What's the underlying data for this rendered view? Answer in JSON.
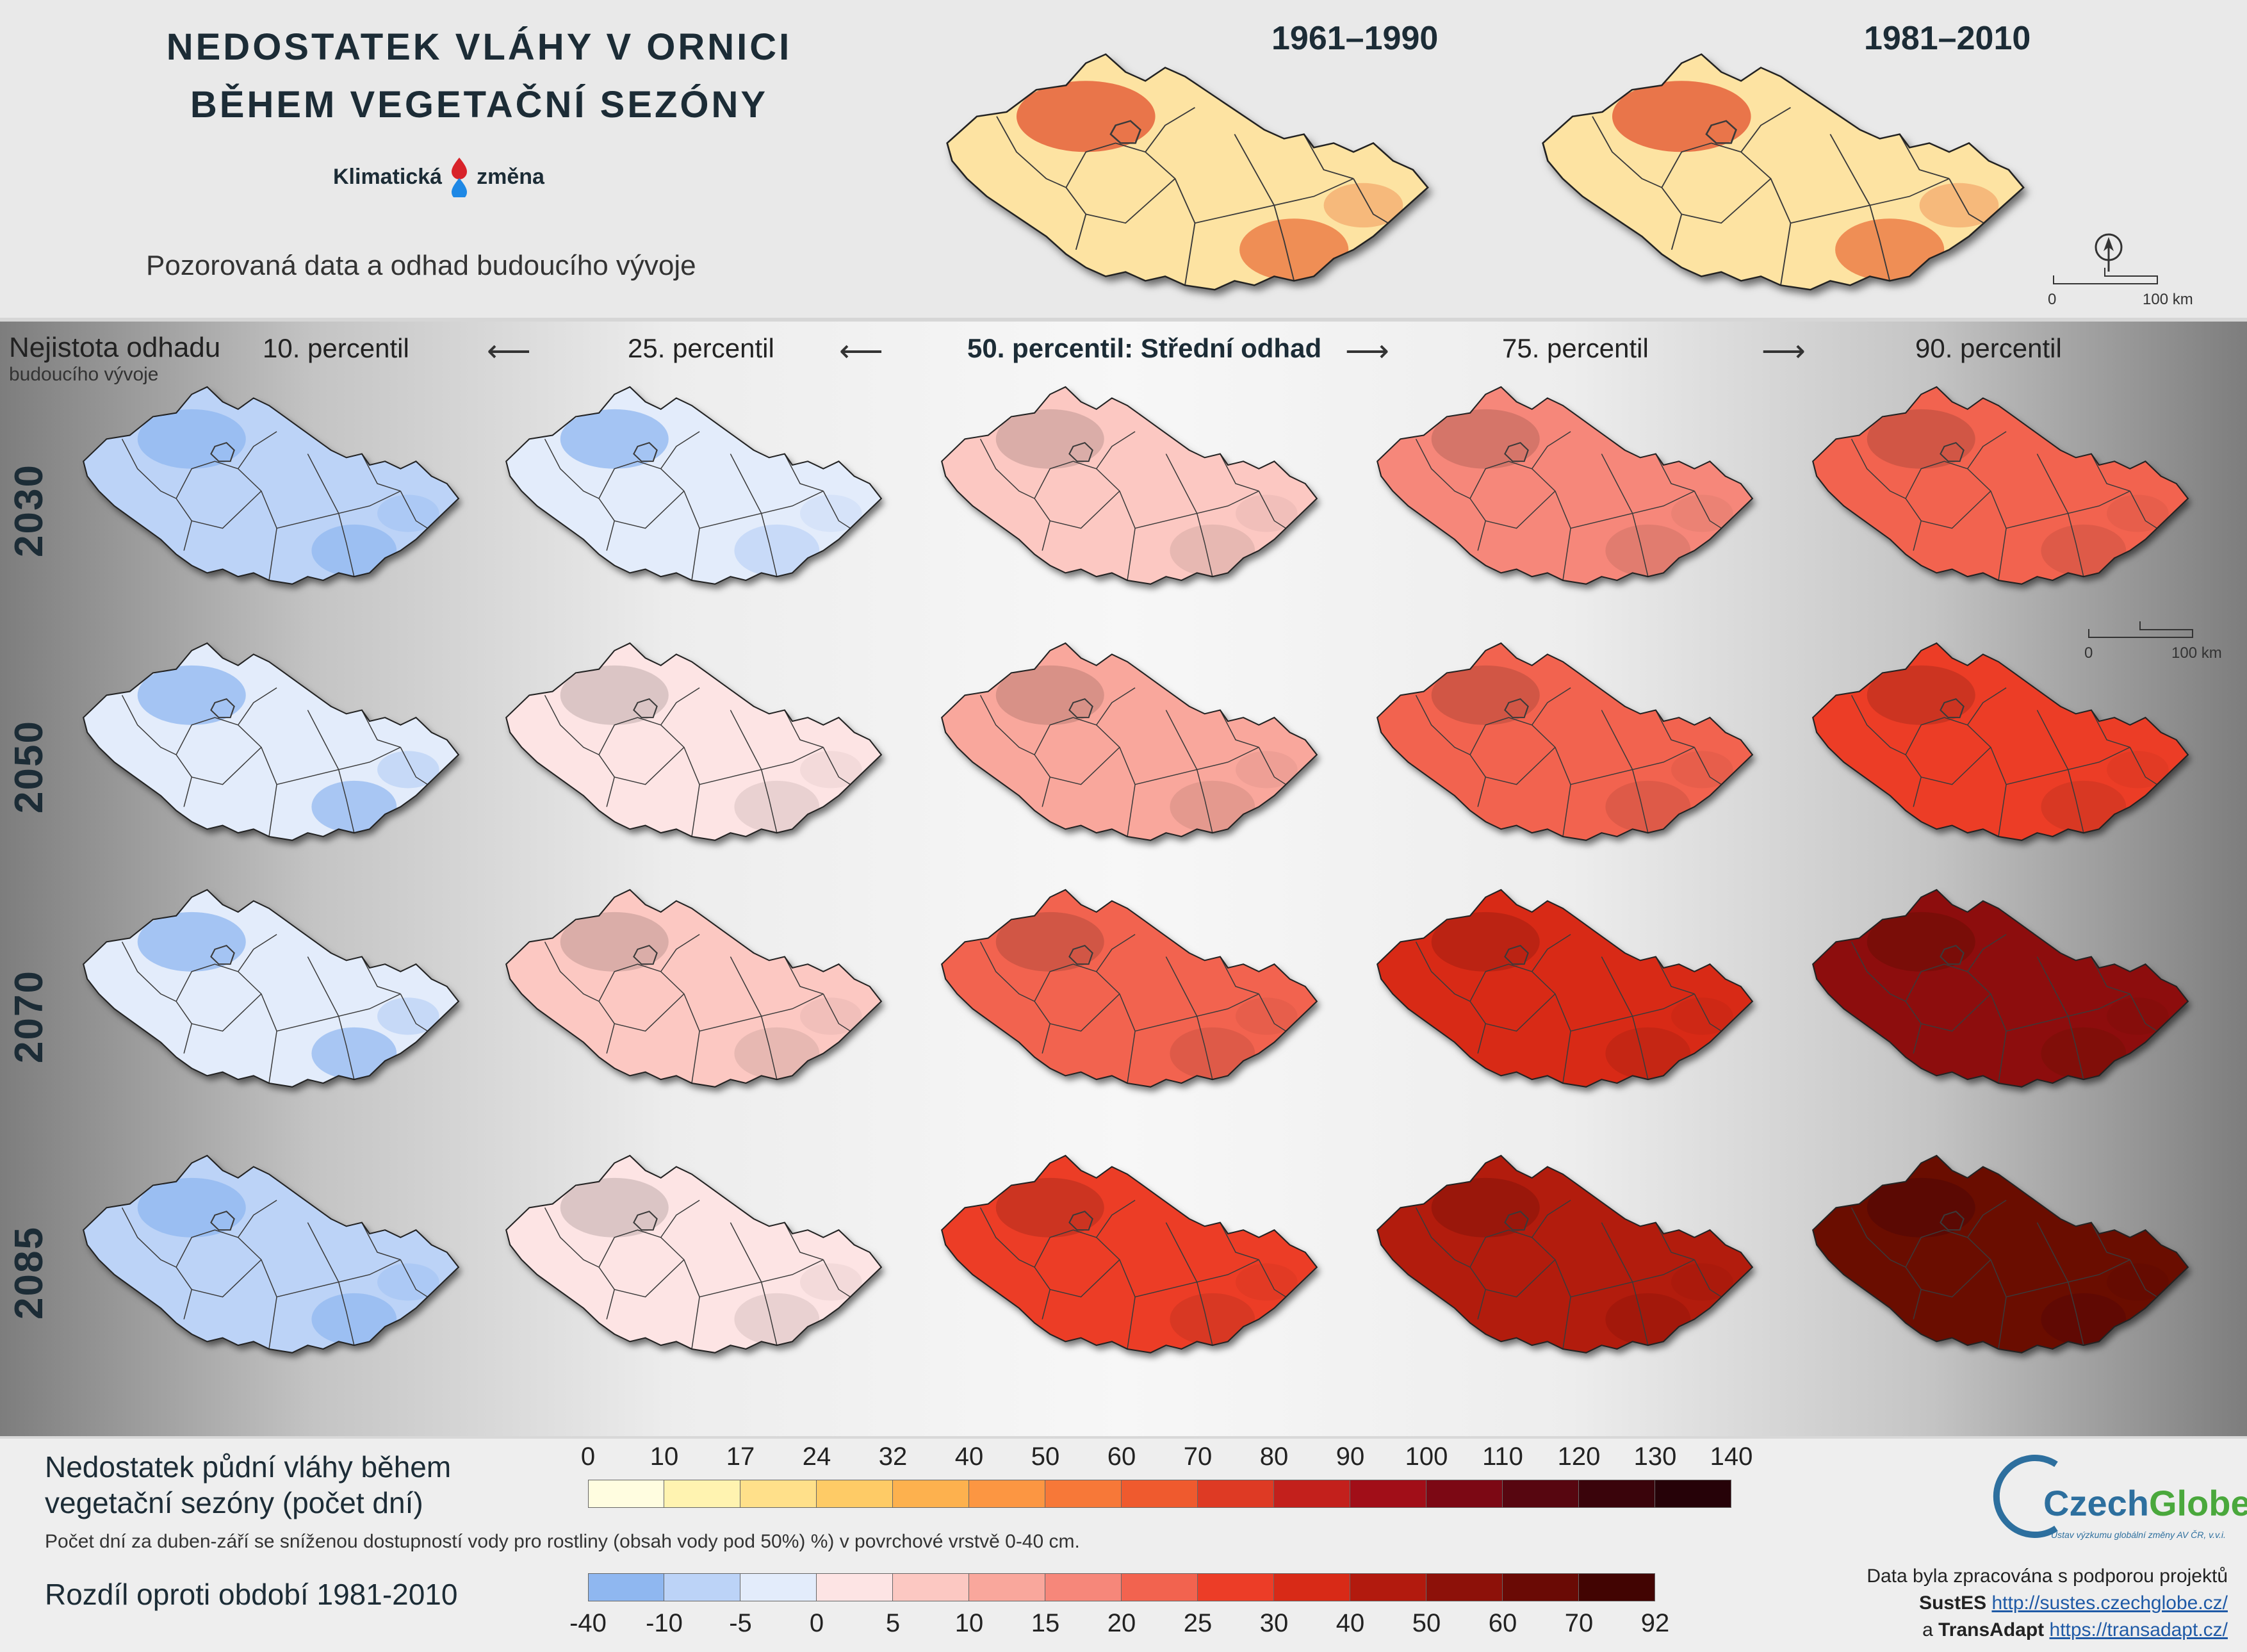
{
  "header": {
    "title_line1": "NEDOSTATEK VLÁHY V ORNICI",
    "title_line2": "BĚHEM VEGETAČNÍ SEZÓNY",
    "logo_left": "Klimatická",
    "logo_right": "změna",
    "subtitle": "Pozorovaná data a odhad budoucího vývoje"
  },
  "observed_maps": [
    {
      "period": "1961–1990"
    },
    {
      "period": "1981–2010"
    }
  ],
  "scale": {
    "zero": "0",
    "length": "100 km"
  },
  "uncertainty": {
    "line1": "Nejistota odhadu",
    "line2": "budoucího vývoje"
  },
  "columns": [
    "10. percentil",
    "25. percentil",
    "50. percentil: Střední odhad",
    "75. percentil",
    "90. percentil"
  ],
  "arrows": [
    "⟵",
    "⟵",
    "⟶",
    "⟶"
  ],
  "rows": [
    "2030",
    "2050",
    "2070",
    "2085"
  ],
  "map_levels": [
    [
      -6,
      -2,
      7,
      15,
      24
    ],
    [
      -4,
      3,
      11,
      20,
      28
    ],
    [
      -3,
      9,
      22,
      36,
      50
    ],
    [
      -7,
      2,
      26,
      40,
      62
    ]
  ],
  "legend_days": {
    "title": "Nedostatek půdní vláhy během vegetační sezóny (počet dní)",
    "ticks": [
      "0",
      "10",
      "17",
      "24",
      "32",
      "40",
      "50",
      "60",
      "70",
      "80",
      "90",
      "100",
      "110",
      "120",
      "130",
      "140"
    ],
    "colors": [
      "#fffde0",
      "#fff3b0",
      "#ffe08a",
      "#fecb66",
      "#fdb14e",
      "#fc9642",
      "#f77838",
      "#ef5a2e",
      "#de3a24",
      "#c3201c",
      "#a10e18",
      "#7c0814",
      "#570610",
      "#3a040b",
      "#260208"
    ]
  },
  "legend_note": "Počet dní za duben-září se sníženou dostupností vody pro rostliny (obsah vody pod 50%) %) v povrchové vrstvě 0-40 cm.",
  "legend_diff": {
    "title": "Rozdíl oproti období 1981-2010",
    "ticks": [
      "-40",
      "-10",
      "-5",
      "0",
      "5",
      "10",
      "15",
      "20",
      "25",
      "30",
      "40",
      "50",
      "60",
      "70",
      "92"
    ],
    "colors": [
      "#8fb7f0",
      "#bcd3f7",
      "#e3ecfb",
      "#fde4e4",
      "#fcc8c2",
      "#f9a79c",
      "#f6877a",
      "#f2634f",
      "#ec3d27",
      "#d82a17",
      "#b21a0e",
      "#8d1109",
      "#6a0a05",
      "#420402"
    ]
  },
  "czechglobe": {
    "name_a": "Czech",
    "name_b": "Globe",
    "sub": "Ústav výzkumu globální změny AV ČR, v.v.i."
  },
  "credits": {
    "line1": "Data byla zpracována s podporou projektů",
    "p1_name": "SustES",
    "p1_url": "http://sustes.czechglobe.cz/",
    "and": "a",
    "p2_name": "TransAdapt",
    "p2_url": "https://transadapt.cz/"
  }
}
